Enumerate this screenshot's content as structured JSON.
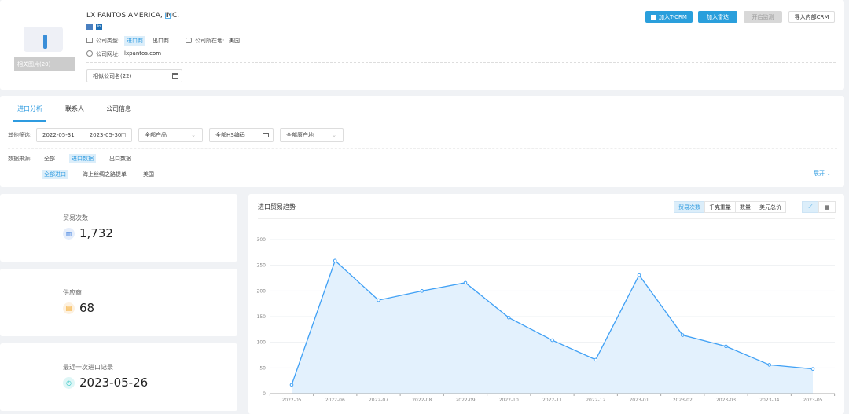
{
  "company": {
    "name": "LX PANTOS AMERICA, INC.",
    "photos_label": "相关图片(20)",
    "type_label": "公司类型:",
    "types": [
      "进口商",
      "出口商"
    ],
    "location_label": "公司所在地:",
    "location": "美国",
    "website_label": "公司网址:",
    "website": "lxpantos.com",
    "similar_label": "相似公司名(22)"
  },
  "actions": {
    "tcrm": "加入T-CRM",
    "radar": "加入雷达",
    "monitor": "开启监测",
    "import_crm": "导入内部CRM"
  },
  "tabs": [
    "进口分析",
    "联系人",
    "公司信息"
  ],
  "filters": {
    "label": "其他筛选:",
    "date_start": "2022-05-31",
    "date_end": "2023-05-30",
    "product": "全部产品",
    "hs": "全部HS编码",
    "origin": "全部原产地"
  },
  "source": {
    "label": "数据来源:",
    "options": [
      "全部",
      "进口数据",
      "出口数据"
    ],
    "sub_options": [
      "全部进口",
      "海上丝绸之路提单",
      "美国"
    ],
    "expand": "展开"
  },
  "stats": [
    {
      "label": "贸易次数",
      "value": "1,732",
      "icon": "bar-chart-icon",
      "color": "#3b7ddd"
    },
    {
      "label": "供应商",
      "value": "68",
      "icon": "store-icon",
      "color": "#f5a623"
    },
    {
      "label": "最近一次进口记录",
      "value": "2023-05-26",
      "icon": "clock-icon",
      "color": "#2bc3c3"
    }
  ],
  "chart_panel": {
    "title": "进口贸易趋势",
    "metrics": [
      "贸易次数",
      "千克重量",
      "数量",
      "美元总价"
    ]
  },
  "chart_data": {
    "type": "area",
    "categories": [
      "2022-05",
      "2022-06",
      "2022-07",
      "2022-08",
      "2022-09",
      "2022-10",
      "2022-11",
      "2022-12",
      "2023-01",
      "2023-02",
      "2023-03",
      "2023-04",
      "2023-05"
    ],
    "values": [
      17,
      259,
      182,
      200,
      216,
      148,
      104,
      66,
      231,
      114,
      92,
      56,
      48
    ],
    "ylim": [
      0,
      300
    ],
    "yticks": [
      0,
      50,
      100,
      150,
      200,
      250,
      300
    ],
    "grid": true,
    "color": "#3fa0f5",
    "fill": "#e3f1fd"
  }
}
